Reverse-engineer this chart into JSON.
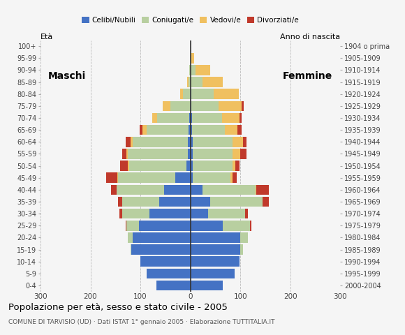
{
  "age_groups": [
    "0-4",
    "5-9",
    "10-14",
    "15-19",
    "20-24",
    "25-29",
    "30-34",
    "35-39",
    "40-44",
    "45-49",
    "50-54",
    "55-59",
    "60-64",
    "65-69",
    "70-74",
    "75-79",
    "80-84",
    "85-89",
    "90-94",
    "95-99",
    "100+"
  ],
  "birth_years": [
    "2000-2004",
    "1995-1999",
    "1990-1994",
    "1985-1989",
    "1980-1984",
    "1975-1979",
    "1970-1974",
    "1965-1969",
    "1960-1964",
    "1955-1959",
    "1950-1954",
    "1945-1949",
    "1940-1944",
    "1935-1939",
    "1930-1934",
    "1925-1929",
    "1920-1924",
    "1915-1919",
    "1910-1914",
    "1905-1909",
    "1904 o prima"
  ],
  "male": {
    "celibe": [
      68,
      88,
      100,
      118,
      115,
      103,
      82,
      62,
      52,
      30,
      8,
      5,
      5,
      3,
      2,
      0,
      0,
      0,
      0,
      0,
      0
    ],
    "coniugato": [
      0,
      0,
      0,
      2,
      10,
      25,
      55,
      75,
      95,
      115,
      115,
      120,
      110,
      85,
      65,
      40,
      15,
      4,
      2,
      0,
      0
    ],
    "vedovo": [
      0,
      0,
      0,
      0,
      0,
      0,
      0,
      0,
      0,
      1,
      2,
      3,
      5,
      8,
      10,
      15,
      5,
      2,
      0,
      0,
      0
    ],
    "divorziato": [
      0,
      0,
      0,
      0,
      0,
      2,
      5,
      8,
      12,
      22,
      15,
      8,
      10,
      5,
      0,
      0,
      0,
      0,
      0,
      0,
      0
    ]
  },
  "female": {
    "nubile": [
      65,
      88,
      98,
      100,
      100,
      65,
      35,
      40,
      25,
      5,
      5,
      5,
      5,
      4,
      3,
      2,
      2,
      0,
      0,
      0,
      0
    ],
    "coniugata": [
      0,
      0,
      0,
      5,
      15,
      55,
      75,
      105,
      105,
      75,
      80,
      80,
      80,
      65,
      60,
      55,
      45,
      25,
      10,
      2,
      0
    ],
    "vedova": [
      0,
      0,
      0,
      0,
      0,
      0,
      0,
      0,
      2,
      5,
      5,
      15,
      20,
      25,
      35,
      45,
      50,
      40,
      30,
      5,
      0
    ],
    "divorziata": [
      0,
      0,
      0,
      0,
      0,
      2,
      5,
      12,
      25,
      8,
      8,
      12,
      8,
      8,
      5,
      5,
      0,
      0,
      0,
      0,
      0
    ]
  },
  "color_celibe": "#4472c4",
  "color_coniugato": "#b8cfa0",
  "color_vedovo": "#f0c060",
  "color_divorziato": "#c0392b",
  "title": "Popolazione per età, sesso e stato civile - 2005",
  "subtitle": "COMUNE DI TARVISIO (UD) · Dati ISTAT 1° gennaio 2005 · Elaborazione TUTTITALIA.IT",
  "xlabel_left": "Maschi",
  "xlabel_right": "Femmine",
  "ylabel_left": "Età",
  "ylabel_right": "Anno di nascita",
  "xlim": 300,
  "bg_color": "#f5f5f5",
  "grid_color": "#bbbbbb",
  "bar_height": 0.85
}
